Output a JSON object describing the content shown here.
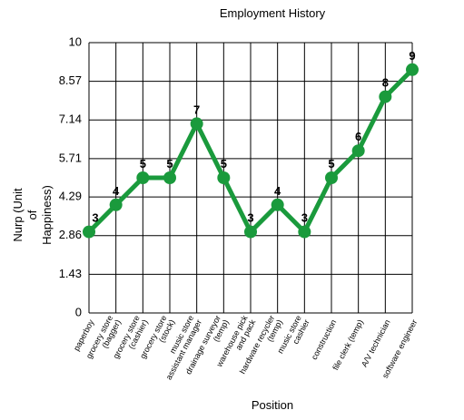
{
  "chart_data": {
    "type": "line",
    "title": "Employment History",
    "x_label": "Position",
    "y_label": [
      "Nurp (Unit",
      "of",
      "Happiness)"
    ],
    "categories": [
      [
        "paperboy"
      ],
      [
        "grocery store",
        "(bagger)"
      ],
      [
        "grocery store",
        "(cashier)"
      ],
      [
        "grocery store",
        "(stock)"
      ],
      [
        "music store",
        "assistant manager"
      ],
      [
        "drainage surveyor",
        "(temp)"
      ],
      [
        "warehouse pick",
        "and pack"
      ],
      [
        "hardware recycler",
        "(temp)"
      ],
      [
        "music store",
        "cashier"
      ],
      [
        "construction"
      ],
      [
        "file clerk (temp)"
      ],
      [
        "A/V technician"
      ],
      [
        "software engineer"
      ]
    ],
    "series": [
      {
        "name": "Nurp",
        "color": "#1a9a3c",
        "values": [
          3,
          4,
          5,
          5,
          7,
          5,
          3,
          4,
          3,
          5,
          6,
          8,
          9
        ]
      }
    ],
    "ylim": [
      0,
      10
    ],
    "yticks": [
      0,
      1.43,
      2.86,
      4.29,
      5.71,
      7.14,
      8.57,
      10
    ],
    "grid": true,
    "data_labels": true
  }
}
